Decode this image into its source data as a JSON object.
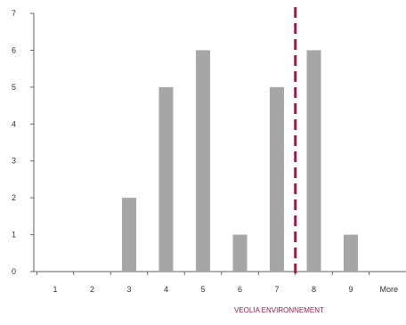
{
  "chart_data": {
    "type": "bar",
    "categories": [
      "1",
      "2",
      "3",
      "4",
      "5",
      "6",
      "7",
      "8",
      "9",
      "More"
    ],
    "values": [
      0,
      0,
      2,
      5,
      6,
      1,
      5,
      6,
      1,
      0
    ],
    "title": "",
    "xlabel": "",
    "ylabel": "",
    "ylim": [
      0,
      7
    ],
    "yticks": [
      "0",
      "1",
      "2",
      "3",
      "4",
      "5",
      "6",
      "7"
    ],
    "grid": false,
    "legend": "none",
    "bar_color": "#a6a6a6",
    "marker": {
      "label": "VEOLIA ENVIRONNEMENT",
      "x_value": 7.5,
      "color": "#9e1b4b",
      "style": "dashed"
    }
  }
}
